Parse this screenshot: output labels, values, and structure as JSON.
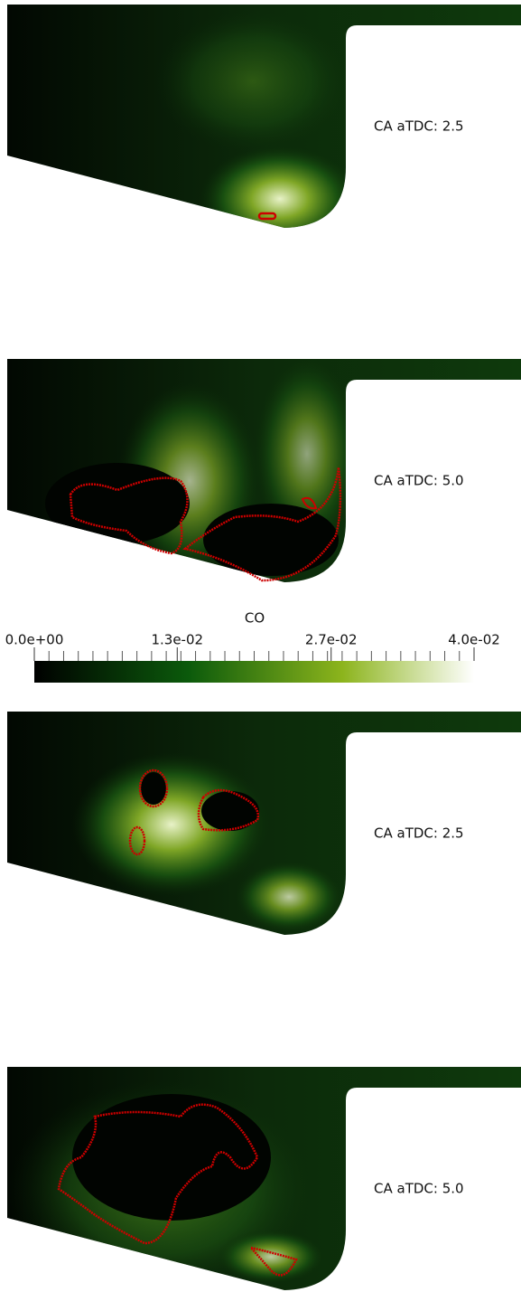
{
  "panels": [
    {
      "label": "CA aTDC: 2.5"
    },
    {
      "label": "CA aTDC: 5.0"
    },
    {
      "label": "CA aTDC: 2.5"
    },
    {
      "label": "CA aTDC: 5.0"
    }
  ],
  "colorbar": {
    "title": "CO",
    "range": [
      0,
      0.04
    ],
    "ticks": [
      {
        "value": 0,
        "label": "0.0e+00"
      },
      {
        "value": 0.013,
        "label": "1.3e-02"
      },
      {
        "value": 0.027,
        "label": "2.7e-02"
      },
      {
        "value": 0.04,
        "label": "4.0e-02"
      }
    ]
  }
}
